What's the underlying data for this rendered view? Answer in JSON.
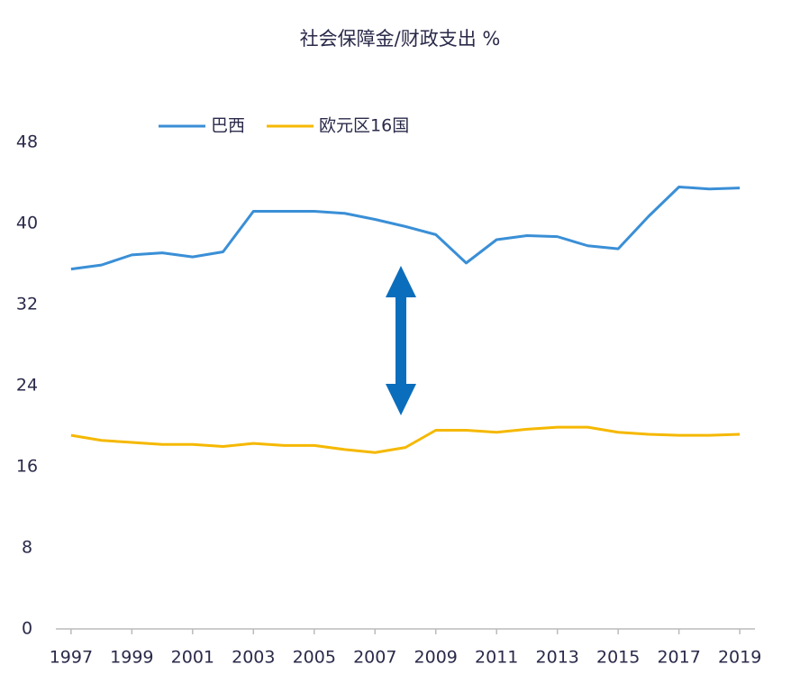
{
  "chart_data": {
    "type": "line",
    "title": "社会保障金/财政支出 %",
    "x": [
      1997,
      1998,
      1999,
      2000,
      2001,
      2002,
      2003,
      2004,
      2005,
      2006,
      2007,
      2008,
      2009,
      2010,
      2011,
      2012,
      2013,
      2014,
      2015,
      2016,
      2017,
      2018,
      2019
    ],
    "series": [
      {
        "name": "巴西",
        "color": "#3a8fd6",
        "values": [
          35.5,
          35.9,
          36.9,
          37.1,
          36.7,
          37.2,
          41.2,
          41.2,
          41.2,
          41.0,
          40.4,
          39.7,
          38.9,
          36.1,
          38.4,
          38.8,
          38.7,
          37.8,
          37.5,
          40.7,
          43.6,
          43.4,
          43.5
        ]
      },
      {
        "name": "欧元区16国",
        "color": "#f5b800",
        "values": [
          19.1,
          18.6,
          18.4,
          18.2,
          18.2,
          18.0,
          18.3,
          18.1,
          18.1,
          17.7,
          17.4,
          17.9,
          19.6,
          19.6,
          19.4,
          19.7,
          19.9,
          19.9,
          19.4,
          19.2,
          19.1,
          19.1,
          19.2
        ]
      }
    ],
    "xlim": [
      1996.5,
      2019.5
    ],
    "xticks": [
      1997,
      1999,
      2001,
      2003,
      2005,
      2007,
      2009,
      2011,
      2013,
      2015,
      2017,
      2019
    ],
    "ylim": [
      0,
      48
    ],
    "yticks": [
      0,
      8,
      16,
      24,
      32,
      40,
      48
    ],
    "legend": "top"
  }
}
